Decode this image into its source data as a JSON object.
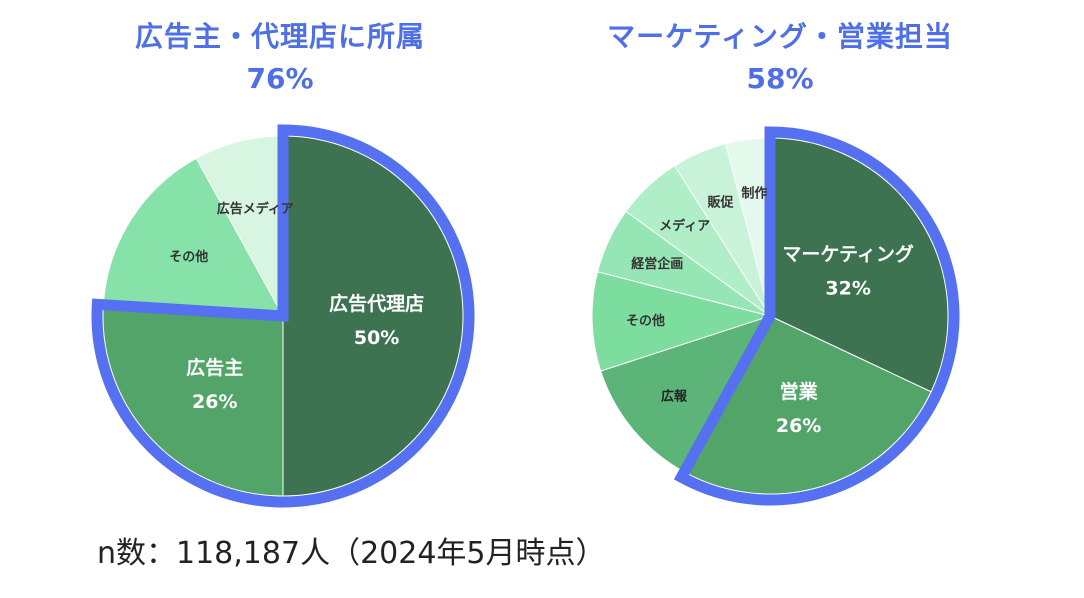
{
  "chart_data": [
    {
      "type": "pie",
      "title": "広告主・代理店に所属",
      "highlight_total": "76%",
      "slices": [
        {
          "label": "広告代理店",
          "value": 50,
          "value_label": "50%",
          "color": "#3d7350",
          "text_color": "#ffffff",
          "highlight": true
        },
        {
          "label": "広告主",
          "value": 26,
          "value_label": "26%",
          "color": "#53a468",
          "text_color": "#ffffff",
          "highlight": true
        },
        {
          "label": "その他",
          "value": 16,
          "value_label": "",
          "color": "#86e2a8",
          "text_color": "#333333",
          "highlight": false
        },
        {
          "label": "広告メディア",
          "value": 8,
          "value_label": "",
          "color": "#d8f5e2",
          "text_color": "#333333",
          "highlight": false
        }
      ]
    },
    {
      "type": "pie",
      "title": "マーケティング・営業担当",
      "highlight_total": "58%",
      "slices": [
        {
          "label": "マーケティング",
          "value": 32,
          "value_label": "32%",
          "color": "#3d7350",
          "text_color": "#ffffff",
          "highlight": true
        },
        {
          "label": "営業",
          "value": 26,
          "value_label": "26%",
          "color": "#53a468",
          "text_color": "#ffffff",
          "highlight": true
        },
        {
          "label": "広報",
          "value": 12,
          "value_label": "",
          "color": "#5cb479",
          "text_color": "#222222",
          "highlight": false
        },
        {
          "label": "その他",
          "value": 9,
          "value_label": "",
          "color": "#7ddd9f",
          "text_color": "#333333",
          "highlight": false
        },
        {
          "label": "経営企画",
          "value": 6,
          "value_label": "",
          "color": "#95e6b4",
          "text_color": "#333333",
          "highlight": false
        },
        {
          "label": "メディア",
          "value": 6,
          "value_label": "",
          "color": "#b0eec7",
          "text_color": "#333333",
          "highlight": false
        },
        {
          "label": "販促",
          "value": 5,
          "value_label": "",
          "color": "#c8f3d8",
          "text_color": "#333333",
          "highlight": false
        },
        {
          "label": "制作",
          "value": 4,
          "value_label": "",
          "color": "#e3f9eb",
          "text_color": "#333333",
          "highlight": false
        }
      ]
    }
  ],
  "colors": {
    "title": "#4f6fe8",
    "highlight_border": "#5570f0"
  },
  "footnote": "n数：118,187人（2024年5月時点）"
}
